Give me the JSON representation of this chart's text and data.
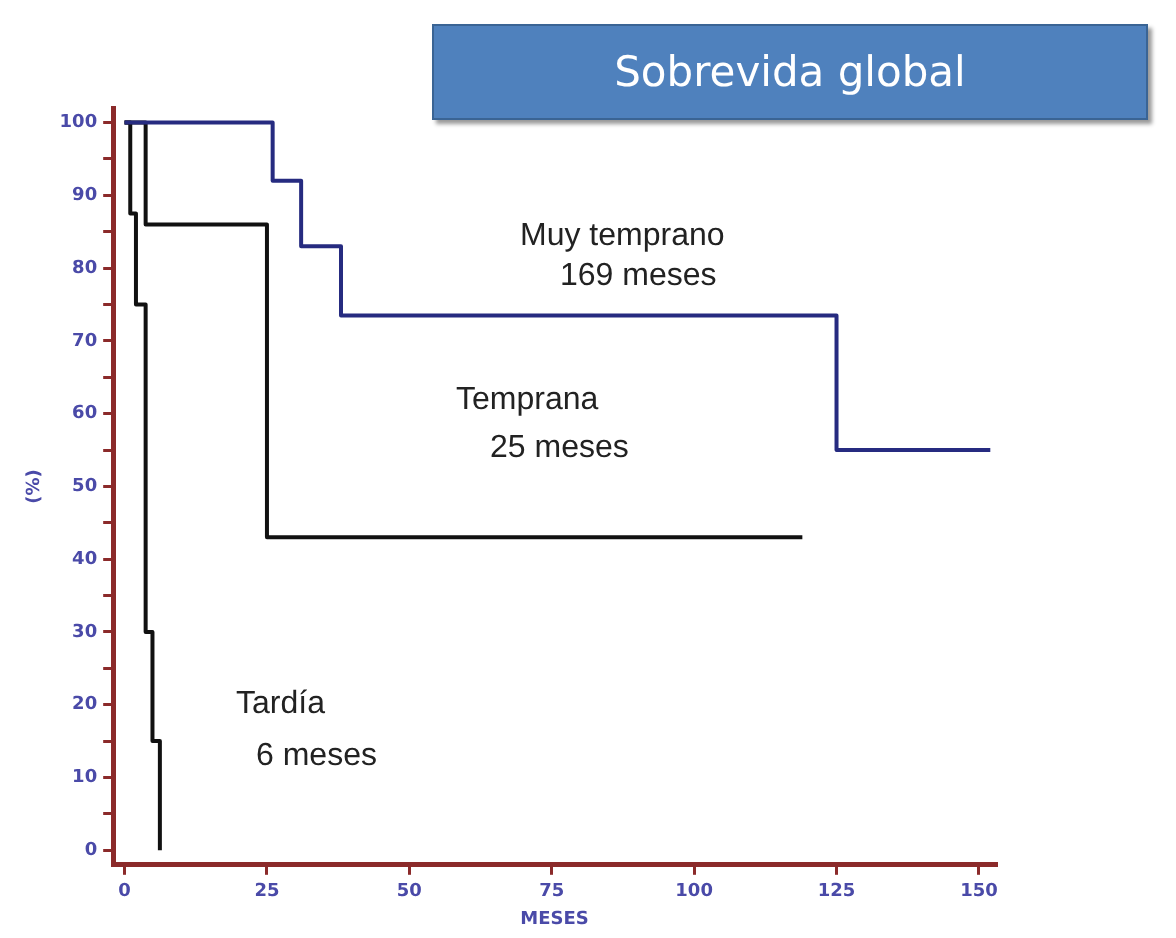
{
  "chart_data": {
    "type": "step",
    "title": "Sobrevida global",
    "xlabel": "MESES",
    "ylabel": "(%)",
    "series": [
      {
        "color": "#262b80",
        "x": [
          0,
          26,
          31,
          38,
          125,
          152
        ],
        "values": [
          100,
          92,
          83,
          73.5,
          55,
          55
        ]
      },
      {
        "color": "#111111",
        "x": [
          0,
          3.7,
          25,
          119
        ],
        "values": [
          100,
          86,
          43,
          43
        ]
      },
      {
        "color": "#111111",
        "x": [
          0,
          1,
          2,
          3.7,
          4.9,
          6.2
        ],
        "values": [
          100,
          87.5,
          75,
          30,
          15,
          0
        ]
      }
    ],
    "xlim": [
      -2,
      153
    ],
    "xticks": [
      0,
      25,
      50,
      75,
      100,
      125,
      150
    ],
    "ylim": [
      -2,
      102
    ],
    "yticks": [
      0,
      {
        "value": 5,
        "label": null
      },
      10,
      {
        "value": 15,
        "label": null
      },
      20,
      {
        "value": 25,
        "label": null
      },
      30,
      {
        "value": 35,
        "label": null
      },
      40,
      {
        "value": 45,
        "label": null
      },
      50,
      {
        "value": 55,
        "label": null
      },
      60,
      {
        "value": 65,
        "label": null
      },
      70,
      {
        "value": 75,
        "label": null
      },
      80,
      {
        "value": 85,
        "label": null
      },
      90,
      {
        "value": 95,
        "label": null
      },
      100
    ],
    "grid": false,
    "legend": false,
    "marker": "none",
    "line_style": "solid",
    "annotations": [
      "Muy temprano",
      "169 meses",
      "Temprana",
      "25 meses",
      "Tardía",
      "6 meses"
    ]
  }
}
